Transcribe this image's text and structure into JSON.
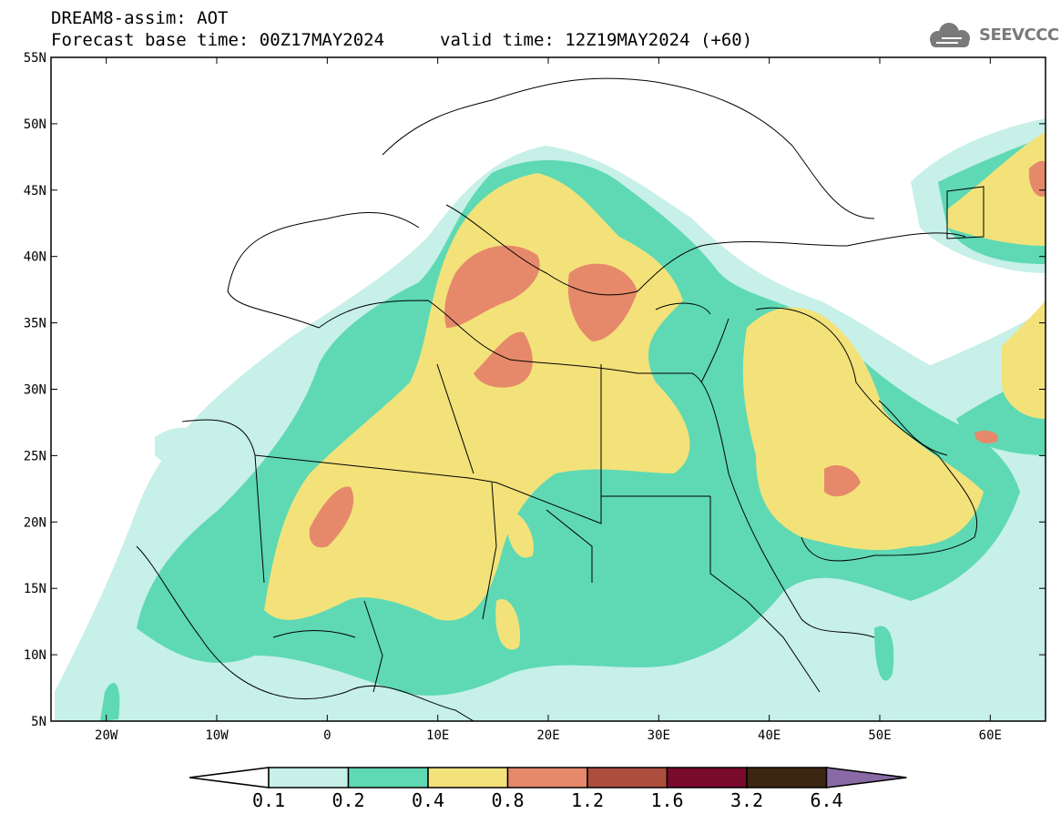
{
  "header": {
    "title": "DREAM8-assim: AOT",
    "base_time": "Forecast base time: 00Z17MAY2024",
    "valid_time": "valid time: 12Z19MAY2024 (+60)"
  },
  "logo": {
    "text": "SEEVCCC",
    "icon": "cloud-icon"
  },
  "map": {
    "lon_range": [
      -25,
      65
    ],
    "lat_range": [
      5,
      55
    ],
    "lat_ticks": [
      "5N",
      "10N",
      "15N",
      "20N",
      "25N",
      "30N",
      "35N",
      "40N",
      "45N",
      "50N",
      "55N"
    ],
    "lon_ticks": [
      "20W",
      "10W",
      "0",
      "10E",
      "20E",
      "30E",
      "40E",
      "50E",
      "60E"
    ],
    "grid": false
  },
  "colorbar": {
    "labels": [
      "0.1",
      "0.2",
      "0.4",
      "0.8",
      "1.2",
      "1.6",
      "3.2",
      "6.4"
    ],
    "colors": [
      "#c6f0e8",
      "#5ed9b4",
      "#f3e27a",
      "#e6896a",
      "#ad4d3e",
      "#7a0a2c",
      "#3c2612",
      "#8a6aa5"
    ],
    "under_color": "#ffffff",
    "over_color": "#8a6aa5"
  }
}
